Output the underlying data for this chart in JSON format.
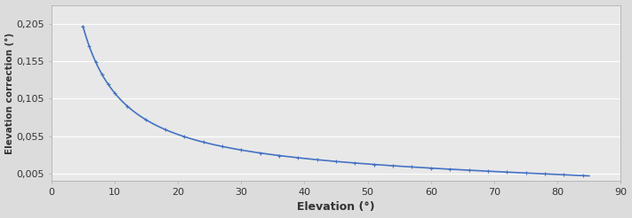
{
  "title": "",
  "xlabel": "Elevation (°)",
  "ylabel": "Elevation correction (°)",
  "xlim": [
    0,
    90
  ],
  "ylim": [
    -0.005,
    0.23
  ],
  "yticks": [
    0.005,
    0.055,
    0.105,
    0.155,
    0.205
  ],
  "ytick_labels": [
    "0,005",
    "0,055",
    "0,105",
    "0,155",
    "0,205"
  ],
  "xticks": [
    0,
    10,
    20,
    30,
    40,
    50,
    60,
    70,
    80,
    90
  ],
  "line_color": "#4472C4",
  "bg_color": "#dcdcdc",
  "plot_bg": "#e8e8e8",
  "grid_color": "#ffffff",
  "marker_color": "#4472C4",
  "line_width": 1.2
}
